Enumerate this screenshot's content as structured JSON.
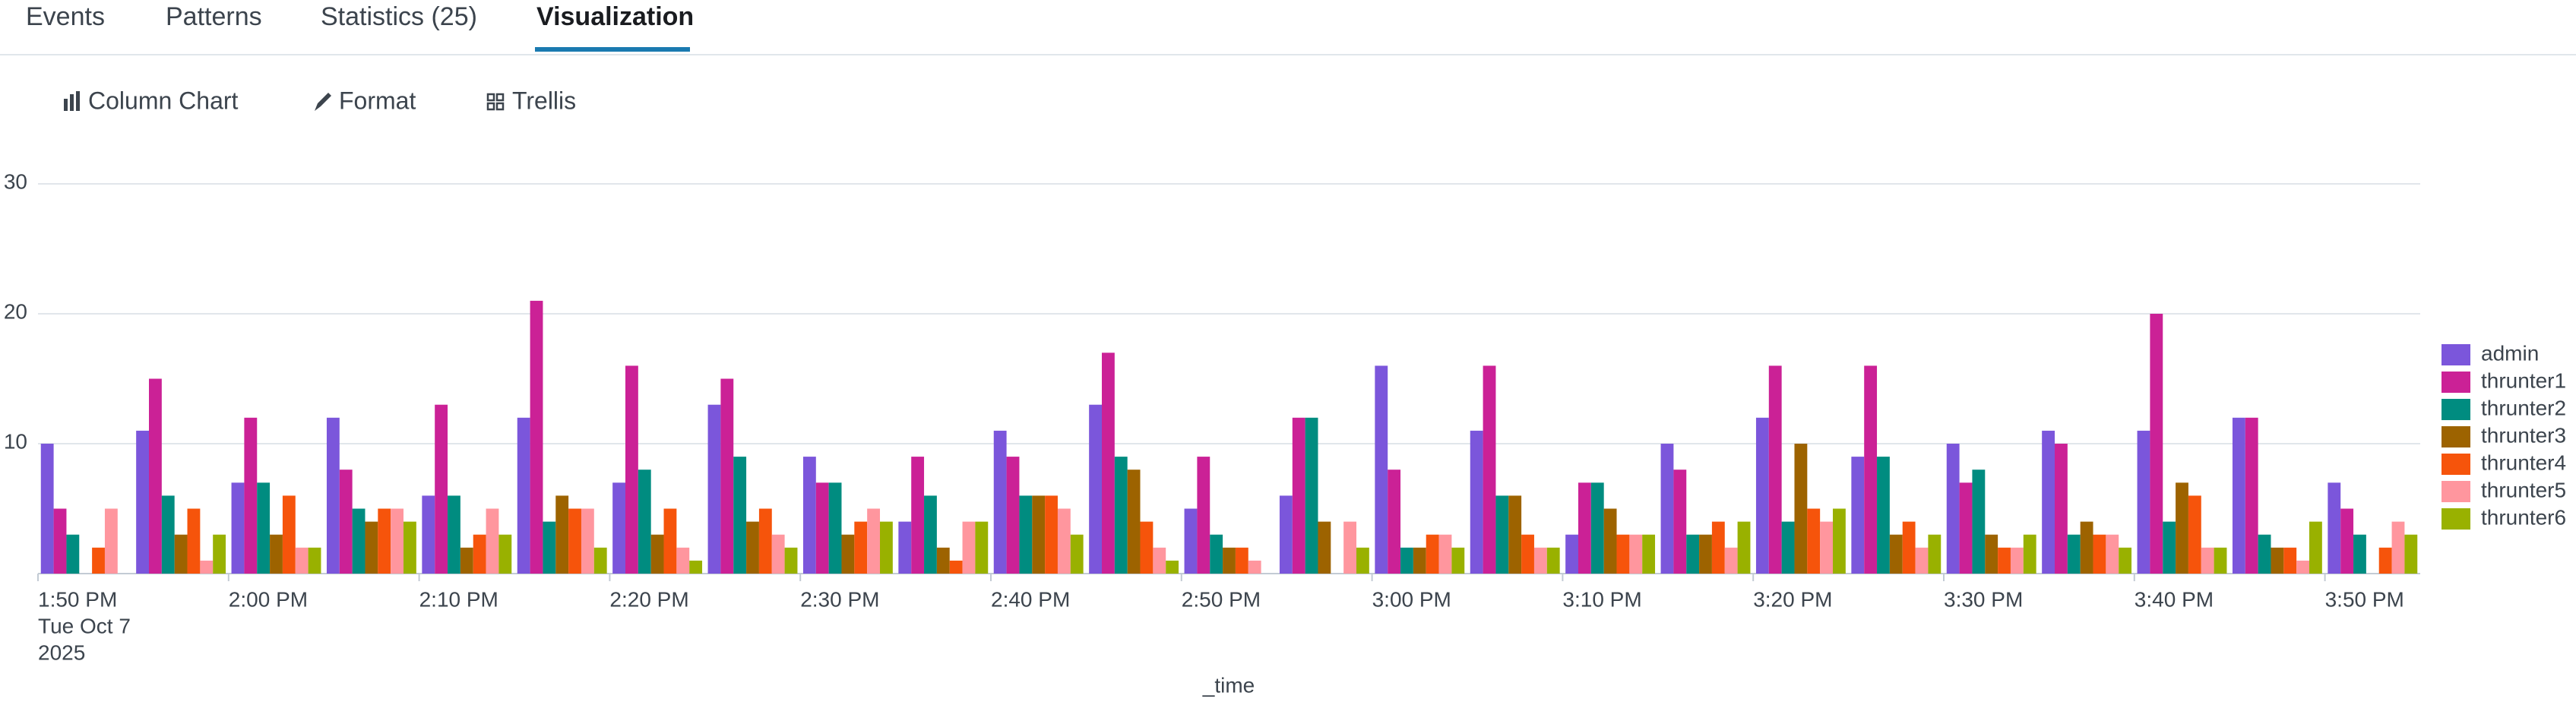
{
  "tabs": [
    "Events",
    "Patterns",
    "Statistics (25)",
    "Visualization"
  ],
  "toolbar": [
    "Column Chart",
    "Format",
    "Trellis"
  ],
  "chart_data": {
    "type": "bar",
    "x_label": "_time",
    "categories": [
      "1:50 PM",
      null,
      "2:00 PM",
      null,
      "2:10 PM",
      null,
      "2:20 PM",
      null,
      "2:30 PM",
      null,
      "2:40 PM",
      null,
      "2:50 PM",
      null,
      "3:00 PM",
      null,
      "3:10 PM",
      null,
      "3:20 PM",
      null,
      "3:30 PM",
      null,
      "3:40 PM",
      null,
      "3:50 PM"
    ],
    "first_category_sublabel": [
      "Tue Oct 7",
      "2025"
    ],
    "ylim": [
      0,
      30
    ],
    "yticks": [
      10,
      20,
      30
    ],
    "grid": true,
    "legend": "right",
    "series": [
      {
        "name": "admin",
        "color": "#7b56db",
        "values": [
          10,
          11,
          7,
          12,
          6,
          12,
          7,
          13,
          9,
          4,
          11,
          13,
          5,
          6,
          16,
          11,
          3,
          10,
          12,
          9,
          10,
          11,
          11,
          12,
          7
        ]
      },
      {
        "name": "thrunter1",
        "color": "#cb2196",
        "values": [
          5,
          15,
          12,
          8,
          13,
          21,
          16,
          15,
          7,
          9,
          9,
          17,
          9,
          12,
          8,
          16,
          7,
          8,
          16,
          16,
          7,
          10,
          20,
          12,
          5
        ]
      },
      {
        "name": "thrunter2",
        "color": "#008c80",
        "values": [
          3,
          6,
          7,
          5,
          6,
          4,
          8,
          9,
          7,
          6,
          6,
          9,
          3,
          12,
          2,
          6,
          7,
          3,
          4,
          9,
          8,
          3,
          4,
          3,
          3
        ]
      },
      {
        "name": "thrunter3",
        "color": "#9d6300",
        "values": [
          0,
          3,
          3,
          4,
          2,
          6,
          3,
          4,
          3,
          2,
          6,
          8,
          2,
          4,
          2,
          6,
          5,
          3,
          10,
          3,
          3,
          4,
          7,
          2,
          0
        ]
      },
      {
        "name": "thrunter4",
        "color": "#f6540b",
        "values": [
          2,
          5,
          6,
          5,
          3,
          5,
          5,
          5,
          4,
          1,
          6,
          4,
          2,
          0,
          3,
          3,
          3,
          4,
          5,
          4,
          2,
          3,
          6,
          2,
          2
        ]
      },
      {
        "name": "thrunter5",
        "color": "#ff969e",
        "values": [
          5,
          1,
          2,
          5,
          5,
          5,
          2,
          3,
          5,
          4,
          5,
          2,
          1,
          4,
          3,
          2,
          3,
          2,
          4,
          2,
          2,
          3,
          2,
          1,
          4
        ]
      },
      {
        "name": "thrunter6",
        "color": "#99b100",
        "values": [
          0,
          3,
          2,
          4,
          3,
          2,
          1,
          2,
          4,
          4,
          3,
          1,
          0,
          2,
          2,
          2,
          3,
          4,
          5,
          3,
          3,
          2,
          2,
          4,
          3
        ]
      }
    ]
  }
}
